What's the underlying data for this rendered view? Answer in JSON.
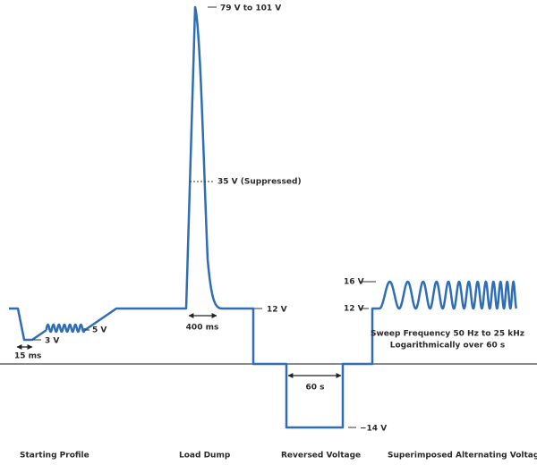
{
  "labels": {
    "peak": "79 V to 101 V",
    "suppressed": "35 V (Suppressed)",
    "load_dump_level": "12 V",
    "load_dump_width": "400 ms",
    "start_low": "3 V",
    "start_ripple": "5 V",
    "start_width": "15 ms",
    "reverse_width": "60 s",
    "reverse_level": "−14 V",
    "ac_high": "16 V",
    "ac_low": "12 V",
    "sweep_line1": "Sweep Frequency 50 Hz to 25 kHz",
    "sweep_line2": "Logarithmically over 60 s"
  },
  "sections": [
    "Starting Profile",
    "Load Dump",
    "Reversed Voltage",
    "Superimposed Alternating Voltage"
  ]
}
